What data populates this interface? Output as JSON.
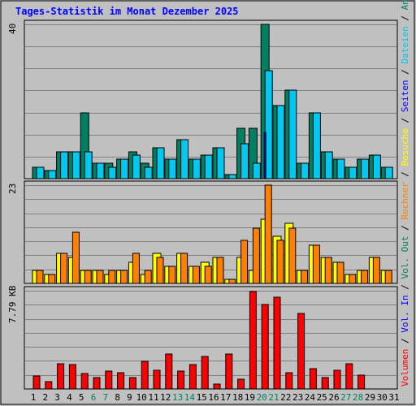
{
  "title": "Tages-Statistik im Monat Dezember 2025",
  "colors": {
    "background": "#C0C0C0",
    "title": "#0000FF",
    "anfragen": "#008060",
    "dateien": "#00C8F0",
    "seiten": "#0000FF",
    "besuche": "#FFFF00",
    "rechner": "#FF8000",
    "volumen": "#FF0000",
    "weekend": "#008060",
    "grid": "#808080"
  },
  "panels": {
    "top": {
      "ymax_label": "40",
      "series_labels": [
        "Anfragen",
        "Dateien",
        "Seiten"
      ]
    },
    "mid": {
      "ymax_label": "23",
      "series_labels": [
        "Besuche",
        "Rechner",
        "Vol. Out"
      ]
    },
    "bot": {
      "ymax_label": "7.79 KB",
      "series_labels": [
        "Vol. In",
        "Volumen"
      ]
    }
  },
  "chart_data": {
    "type": "bar",
    "title": "Tages-Statistik im Monat Dezember 2025",
    "categories": [
      "1",
      "2",
      "3",
      "4",
      "5",
      "6",
      "7",
      "8",
      "9",
      "10",
      "11",
      "12",
      "13",
      "14",
      "15",
      "16",
      "17",
      "18",
      "19",
      "20",
      "21",
      "22",
      "23",
      "24",
      "25",
      "26",
      "27",
      "28",
      "29",
      "30",
      "31"
    ],
    "weekend_days": [
      "6",
      "7",
      "13",
      "14",
      "20",
      "21",
      "27",
      "28"
    ],
    "panels": [
      {
        "name": "top",
        "ylim": [
          0,
          40
        ],
        "series": [
          {
            "name": "Anfragen",
            "values": [
              3,
              2,
              7,
              7,
              17,
              4,
              4,
              5,
              7,
              4,
              8,
              5,
              10,
              5,
              6,
              8,
              1,
              13,
              13,
              40,
              19,
              23,
              4,
              17,
              7,
              5,
              3,
              5,
              6,
              3,
              null
            ]
          },
          {
            "name": "Dateien",
            "values": [
              3,
              2,
              7,
              7,
              7,
              4,
              3,
              5,
              6,
              3,
              8,
              5,
              10,
              5,
              6,
              8,
              1,
              9,
              4,
              28,
              19,
              23,
              4,
              17,
              7,
              5,
              3,
              5,
              6,
              3,
              null
            ]
          },
          {
            "name": "Seiten",
            "values": [
              0,
              0,
              0,
              0,
              0,
              0,
              0,
              0,
              0,
              0,
              0,
              0,
              0,
              0,
              0,
              0,
              0,
              0,
              0,
              12,
              0,
              0,
              0,
              0,
              0,
              0,
              0,
              0,
              0,
              0,
              null
            ]
          }
        ]
      },
      {
        "name": "mid",
        "ylim": [
          0,
          23
        ],
        "series": [
          {
            "name": "Besuche",
            "values": [
              3,
              2,
              7,
              6,
              3,
              3,
              2,
              3,
              5,
              2,
              7,
              4,
              7,
              4,
              5,
              6,
              1,
              6,
              3,
              15,
              11,
              14,
              3,
              9,
              6,
              5,
              2,
              3,
              6,
              3,
              null
            ]
          },
          {
            "name": "Rechner",
            "values": [
              3,
              2,
              7,
              12,
              3,
              3,
              3,
              3,
              7,
              3,
              6,
              4,
              7,
              4,
              4,
              6,
              1,
              10,
              13,
              23,
              10,
              13,
              3,
              9,
              6,
              5,
              2,
              3,
              6,
              3,
              null
            ]
          }
        ]
      },
      {
        "name": "bot",
        "ylim": [
          0,
          7.79
        ],
        "unit": "KB",
        "series": [
          {
            "name": "Volumen",
            "values": [
              1.0,
              0.6,
              2.0,
              1.9,
              1.2,
              0.9,
              1.4,
              1.3,
              0.9,
              2.2,
              1.5,
              2.8,
              1.4,
              1.9,
              2.6,
              0.4,
              2.8,
              0.8,
              7.7,
              6.7,
              7.3,
              1.3,
              6.0,
              1.6,
              0.9,
              1.5,
              2.0,
              1.1,
              0,
              0,
              null
            ]
          }
        ]
      }
    ]
  }
}
